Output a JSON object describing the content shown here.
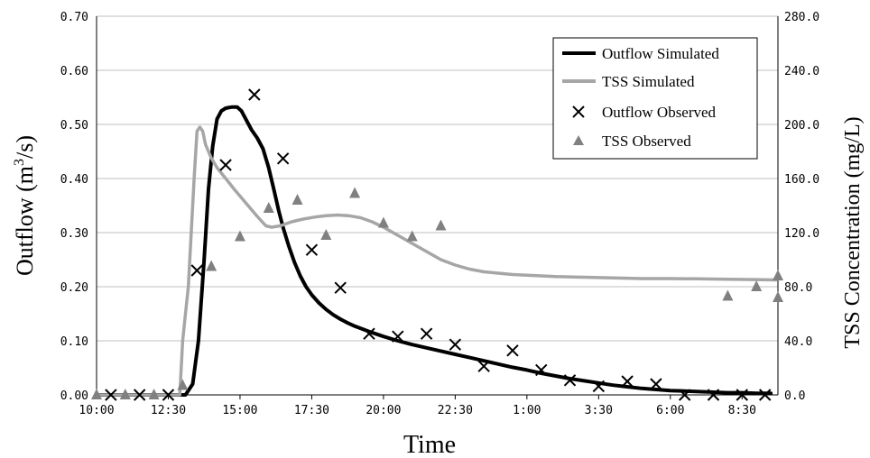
{
  "chart_data": {
    "type": "line",
    "xlabel": "Time",
    "ylabel": "Outflow  (m3/s)",
    "ylabel_main": "Outflow  (m",
    "ylabel_sup": "3",
    "ylabel_tail": "/s)",
    "y2label": "TSS Concentration (mg/L)",
    "x_ticks": [
      "10:00",
      "12:30",
      "15:00",
      "17:30",
      "20:00",
      "22:30",
      "1:00",
      "3:30",
      "6:00",
      "8:30"
    ],
    "x_tick_hours": [
      10,
      12.5,
      15,
      17.5,
      20,
      22.5,
      25,
      27.5,
      30,
      32.5
    ],
    "xlim_hours": [
      10,
      33.75
    ],
    "y_ticks": [
      "0.00",
      "0.10",
      "0.20",
      "0.30",
      "0.40",
      "0.50",
      "0.60",
      "0.70"
    ],
    "ylim": [
      0,
      0.7
    ],
    "y2_ticks": [
      "0.0",
      "40.0",
      "80.0",
      "120.0",
      "160.0",
      "200.0",
      "240.0",
      "280.0"
    ],
    "y2lim": [
      0,
      280
    ],
    "grid": true,
    "legend_position": "top-right",
    "legend": [
      "Outflow Simulated",
      "TSS Simulated",
      "Outflow Observed",
      "TSS Observed"
    ],
    "series": [
      {
        "name": "Outflow Simulated",
        "kind": "line",
        "axis": "left",
        "color": "#000000",
        "x": [
          10,
          13.1,
          13.35,
          13.55,
          13.75,
          13.9,
          14.05,
          14.2,
          14.35,
          14.5,
          14.7,
          14.9,
          15.05,
          15.2,
          15.4,
          15.6,
          15.8,
          16.0,
          16.2,
          16.35,
          16.5,
          16.7,
          16.9,
          17.1,
          17.3,
          17.5,
          17.75,
          18.0,
          18.25,
          18.5,
          18.75,
          19.0,
          19.5,
          20.0,
          20.5,
          21.0,
          21.5,
          22.0,
          22.5,
          23.0,
          23.5,
          24.0,
          24.5,
          25.0,
          25.5,
          26.0,
          26.5,
          27.0,
          27.5,
          28.0,
          28.5,
          29.0,
          29.5,
          30.0,
          30.5,
          31.0,
          31.5,
          32.0,
          32.5,
          33.0,
          33.5
        ],
        "y": [
          0.0,
          0.0,
          0.02,
          0.1,
          0.25,
          0.38,
          0.46,
          0.51,
          0.525,
          0.53,
          0.532,
          0.532,
          0.525,
          0.51,
          0.49,
          0.475,
          0.455,
          0.42,
          0.375,
          0.34,
          0.31,
          0.275,
          0.245,
          0.22,
          0.2,
          0.185,
          0.17,
          0.158,
          0.148,
          0.14,
          0.133,
          0.127,
          0.117,
          0.108,
          0.1,
          0.093,
          0.087,
          0.081,
          0.075,
          0.069,
          0.063,
          0.057,
          0.051,
          0.046,
          0.04,
          0.035,
          0.03,
          0.026,
          0.022,
          0.018,
          0.015,
          0.012,
          0.01,
          0.008,
          0.007,
          0.006,
          0.005,
          0.004,
          0.004,
          0.003,
          0.003
        ]
      },
      {
        "name": "TSS Simulated",
        "kind": "line",
        "axis": "right",
        "color": "#a6a6a6",
        "x": [
          10,
          12.9,
          13.0,
          13.1,
          13.2,
          13.3,
          13.4,
          13.5,
          13.6,
          13.7,
          13.8,
          14.0,
          14.2,
          14.5,
          14.8,
          15.2,
          15.6,
          15.9,
          16.1,
          16.4,
          16.8,
          17.2,
          17.6,
          18.0,
          18.4,
          18.8,
          19.2,
          19.6,
          20.0,
          20.5,
          21.0,
          21.5,
          22.0,
          22.5,
          23.0,
          23.5,
          24.0,
          24.5,
          25.0,
          25.5,
          26.0,
          27.0,
          28.0,
          29.0,
          30.0,
          31.0,
          32.0,
          33.0,
          33.7
        ],
        "y": [
          0,
          0,
          40,
          60,
          80,
          120,
          160,
          195,
          198,
          195,
          185,
          175,
          168,
          160,
          152,
          142,
          132,
          125,
          124,
          125,
          128,
          130,
          131.5,
          132.5,
          133,
          132.5,
          131,
          128,
          124,
          118,
          112,
          106,
          100,
          96,
          93,
          91,
          90,
          89,
          88.5,
          88,
          87.5,
          87,
          86.5,
          86,
          86,
          85.8,
          85.5,
          85.3,
          85
        ]
      },
      {
        "name": "Outflow Observed",
        "kind": "marker",
        "marker": "x",
        "axis": "left",
        "color": "#000000",
        "x": [
          10.5,
          11.5,
          12.5,
          13.5,
          14.5,
          15.5,
          16.5,
          17.5,
          18.5,
          19.5,
          20.5,
          21.5,
          22.5,
          23.5,
          24.5,
          25.5,
          26.5,
          27.5,
          28.5,
          29.5,
          30.5,
          31.5,
          32.5,
          33.3
        ],
        "y": [
          0.0,
          0.0,
          0.0,
          0.23,
          0.425,
          0.555,
          0.437,
          0.268,
          0.198,
          0.113,
          0.108,
          0.113,
          0.093,
          0.053,
          0.082,
          0.046,
          0.027,
          0.016,
          0.025,
          0.02,
          0.0,
          0.0,
          0.0,
          0.0
        ]
      },
      {
        "name": "TSS Observed",
        "kind": "marker",
        "marker": "triangle",
        "axis": "right",
        "color": "#808080",
        "x": [
          10.0,
          11.0,
          12.0,
          13.0,
          14.0,
          15.0,
          16.0,
          17.0,
          18.0,
          19.0,
          20.0,
          21.0,
          22.0,
          32.0,
          33.0,
          34.0,
          35.0
        ],
        "y": [
          0,
          0,
          0,
          7,
          95,
          117,
          138,
          144,
          118,
          149,
          127,
          117,
          125,
          73,
          80,
          72,
          88
        ]
      }
    ]
  }
}
